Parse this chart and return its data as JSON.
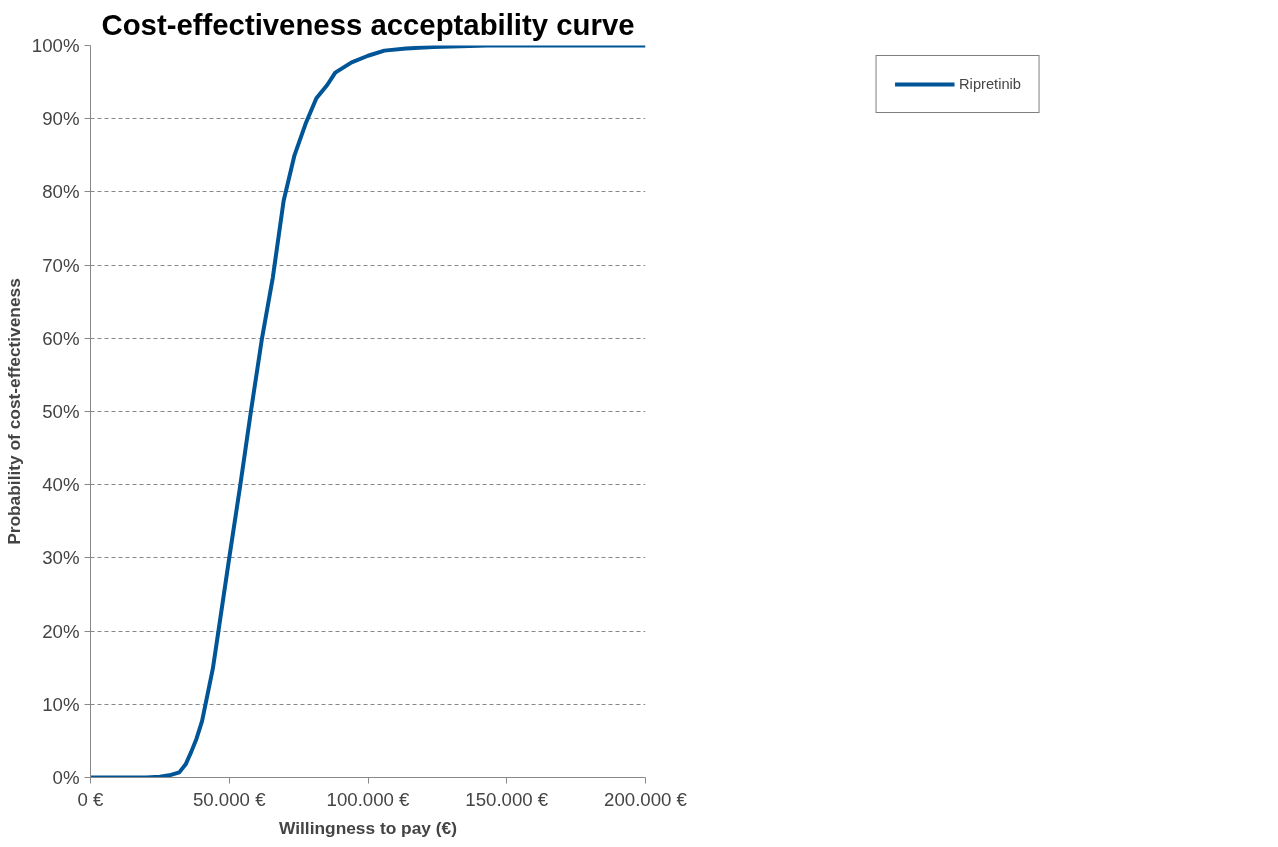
{
  "chart_data": {
    "type": "line",
    "title": "Cost-effectiveness acceptability curve",
    "xlabel": "Willingness to pay (€)",
    "ylabel": "Probability of cost-effectiveness",
    "x": [
      0,
      10000,
      20000,
      25000,
      28400,
      32000,
      34300,
      36300,
      38200,
      40200,
      42200,
      44100,
      46100,
      50000,
      54000,
      55900,
      57800,
      61800,
      65700,
      69600,
      73500,
      77500,
      81400,
      85300,
      88200,
      94100,
      100000,
      105900,
      113700,
      123500,
      143000,
      170000,
      200000
    ],
    "series": [
      {
        "name": "Ripretinib",
        "color": "#005596",
        "values": [
          0,
          0,
          0,
          0.1,
          0.3,
          0.7,
          1.8,
          3.5,
          5.3,
          7.7,
          11.4,
          14.9,
          20,
          30,
          40,
          45,
          50,
          60,
          68.3,
          78.8,
          85,
          89.3,
          92.8,
          94.6,
          96.3,
          97.7,
          98.6,
          99.3,
          99.6,
          99.8,
          100,
          100,
          100
        ]
      }
    ],
    "xlim": [
      0,
      200000
    ],
    "xticks": [
      {
        "value": 0,
        "label": "0 €"
      },
      {
        "value": 50000,
        "label": "50.000 €"
      },
      {
        "value": 100000,
        "label": "100.000 €"
      },
      {
        "value": 150000,
        "label": "150.000 €"
      },
      {
        "value": 200000,
        "label": "200.000 €"
      }
    ],
    "ylim": [
      0,
      100
    ],
    "yticks": [
      {
        "value": 0,
        "label": "0%"
      },
      {
        "value": 10,
        "label": "10%"
      },
      {
        "value": 20,
        "label": "20%"
      },
      {
        "value": 30,
        "label": "30%"
      },
      {
        "value": 40,
        "label": "40%"
      },
      {
        "value": 50,
        "label": "50%"
      },
      {
        "value": 60,
        "label": "60%"
      },
      {
        "value": 70,
        "label": "70%"
      },
      {
        "value": 80,
        "label": "80%"
      },
      {
        "value": 90,
        "label": "90%"
      },
      {
        "value": 100,
        "label": "100%"
      }
    ],
    "grid": "y",
    "legend": "top right",
    "line_style": "solid",
    "marker": "none"
  }
}
